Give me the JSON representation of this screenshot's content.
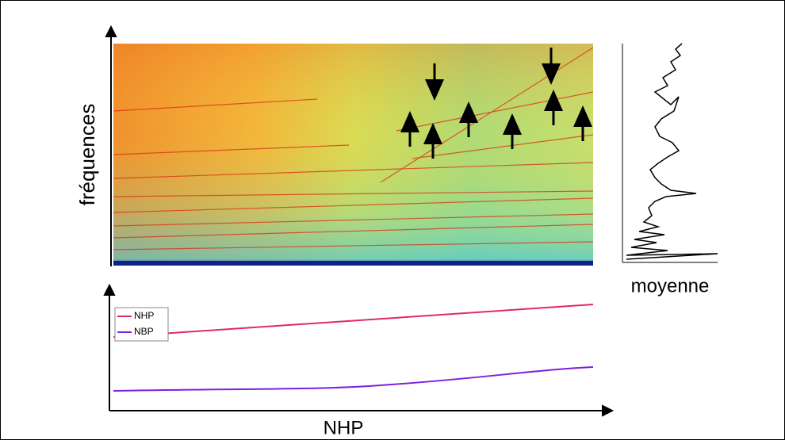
{
  "labels": {
    "y_axis": "fréquences",
    "x_axis": "NHP",
    "side_panel": "moyenne"
  },
  "legend": [
    "NHP",
    "NBP"
  ]
}
